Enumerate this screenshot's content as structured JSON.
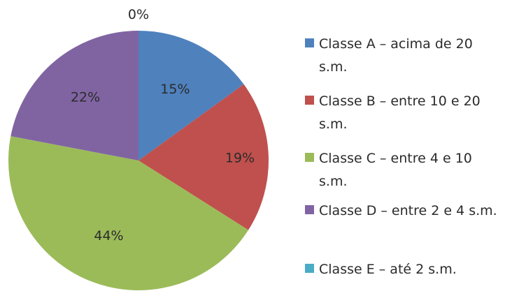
{
  "chart_data": {
    "type": "pie",
    "title": "",
    "slices": [
      {
        "label": "Classe A – acima de 20 s.m.",
        "legend_lines": [
          "Classe A – acima de 20",
          "s.m."
        ],
        "value": 15,
        "display": "15%",
        "color": "#4f81bd"
      },
      {
        "label": "Classe B  – entre 10 e 20 s.m.",
        "legend_lines": [
          "Classe B  – entre 10 e 20",
          "s.m."
        ],
        "value": 19,
        "display": "19%",
        "color": "#c0504d"
      },
      {
        "label": "Classe C – entre 4 e 10 s.m.",
        "legend_lines": [
          "Classe C – entre 4 e 10",
          "s.m."
        ],
        "value": 44,
        "display": "44%",
        "color": "#9bbb59"
      },
      {
        "label": "Classe D – entre 2 e 4 s.m.",
        "legend_lines": [
          "Classe D – entre 2 e 4 s.m."
        ],
        "value": 22,
        "display": "22%",
        "color": "#8064a2"
      },
      {
        "label": "Classe E – até 2 s.m.",
        "legend_lines": [
          "Classe E – até 2 s.m."
        ],
        "value": 0,
        "display": "0%",
        "color": "#4bacc6"
      }
    ],
    "legend_position": "right"
  }
}
